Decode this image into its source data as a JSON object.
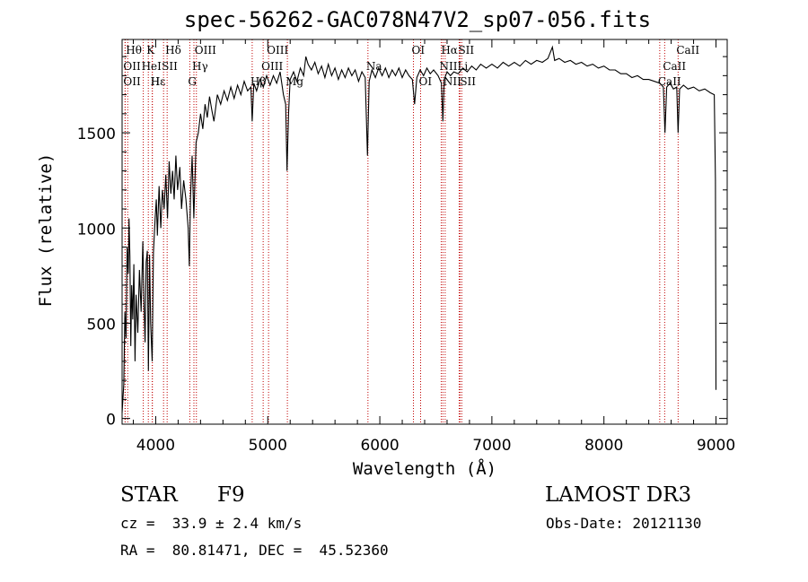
{
  "chart_data": {
    "type": "line",
    "title": "spec-56262-GAC078N47V2_sp07-056.fits",
    "xlabel": "Wavelength (Å)",
    "ylabel": "Flux (relative)",
    "xlim": [
      3700,
      9100
    ],
    "ylim": [
      -30,
      1990
    ],
    "xticks": [
      4000,
      5000,
      6000,
      7000,
      8000,
      9000
    ],
    "yticks": [
      0,
      500,
      1000,
      1500
    ],
    "series": [
      {
        "name": "flux",
        "points": [
          [
            3700,
            30
          ],
          [
            3715,
            180
          ],
          [
            3725,
            560
          ],
          [
            3735,
            420
          ],
          [
            3745,
            900
          ],
          [
            3755,
            760
          ],
          [
            3762,
            1050
          ],
          [
            3770,
            850
          ],
          [
            3778,
            380
          ],
          [
            3786,
            700
          ],
          [
            3795,
            520
          ],
          [
            3805,
            810
          ],
          [
            3815,
            300
          ],
          [
            3825,
            650
          ],
          [
            3840,
            450
          ],
          [
            3855,
            780
          ],
          [
            3870,
            560
          ],
          [
            3885,
            930
          ],
          [
            3895,
            620
          ],
          [
            3905,
            400
          ],
          [
            3915,
            820
          ],
          [
            3925,
            880
          ],
          [
            3935,
            250
          ],
          [
            3945,
            860
          ],
          [
            3955,
            500
          ],
          [
            3968,
            300
          ],
          [
            3980,
            870
          ],
          [
            3995,
            1050
          ],
          [
            4005,
            1150
          ],
          [
            4015,
            960
          ],
          [
            4030,
            1220
          ],
          [
            4045,
            1000
          ],
          [
            4060,
            1200
          ],
          [
            4075,
            1100
          ],
          [
            4090,
            1280
          ],
          [
            4105,
            1050
          ],
          [
            4120,
            1350
          ],
          [
            4135,
            1180
          ],
          [
            4150,
            1300
          ],
          [
            4165,
            1150
          ],
          [
            4180,
            1380
          ],
          [
            4195,
            1200
          ],
          [
            4215,
            1320
          ],
          [
            4230,
            1100
          ],
          [
            4250,
            1250
          ],
          [
            4270,
            1150
          ],
          [
            4290,
            1000
          ],
          [
            4300,
            800
          ],
          [
            4310,
            1150
          ],
          [
            4325,
            1380
          ],
          [
            4340,
            1050
          ],
          [
            4360,
            1450
          ],
          [
            4380,
            1500
          ],
          [
            4400,
            1600
          ],
          [
            4420,
            1520
          ],
          [
            4440,
            1650
          ],
          [
            4460,
            1580
          ],
          [
            4480,
            1690
          ],
          [
            4500,
            1620
          ],
          [
            4520,
            1560
          ],
          [
            4550,
            1700
          ],
          [
            4580,
            1650
          ],
          [
            4610,
            1720
          ],
          [
            4640,
            1670
          ],
          [
            4670,
            1740
          ],
          [
            4700,
            1680
          ],
          [
            4730,
            1750
          ],
          [
            4760,
            1700
          ],
          [
            4790,
            1770
          ],
          [
            4820,
            1720
          ],
          [
            4850,
            1740
          ],
          [
            4861,
            1560
          ],
          [
            4875,
            1760
          ],
          [
            4900,
            1720
          ],
          [
            4930,
            1780
          ],
          [
            4960,
            1740
          ],
          [
            4990,
            1800
          ],
          [
            5020,
            1750
          ],
          [
            5050,
            1800
          ],
          [
            5080,
            1760
          ],
          [
            5110,
            1820
          ],
          [
            5140,
            1700
          ],
          [
            5160,
            1650
          ],
          [
            5172,
            1300
          ],
          [
            5185,
            1600
          ],
          [
            5200,
            1780
          ],
          [
            5230,
            1820
          ],
          [
            5260,
            1770
          ],
          [
            5290,
            1840
          ],
          [
            5320,
            1800
          ],
          [
            5340,
            1900
          ],
          [
            5360,
            1860
          ],
          [
            5390,
            1830
          ],
          [
            5420,
            1870
          ],
          [
            5450,
            1810
          ],
          [
            5480,
            1850
          ],
          [
            5510,
            1790
          ],
          [
            5540,
            1860
          ],
          [
            5570,
            1800
          ],
          [
            5600,
            1840
          ],
          [
            5630,
            1780
          ],
          [
            5660,
            1830
          ],
          [
            5690,
            1790
          ],
          [
            5720,
            1840
          ],
          [
            5750,
            1800
          ],
          [
            5780,
            1830
          ],
          [
            5810,
            1770
          ],
          [
            5840,
            1820
          ],
          [
            5870,
            1790
          ],
          [
            5890,
            1380
          ],
          [
            5905,
            1770
          ],
          [
            5930,
            1830
          ],
          [
            5960,
            1790
          ],
          [
            5990,
            1840
          ],
          [
            6020,
            1800
          ],
          [
            6050,
            1840
          ],
          [
            6080,
            1790
          ],
          [
            6110,
            1830
          ],
          [
            6140,
            1800
          ],
          [
            6170,
            1840
          ],
          [
            6200,
            1790
          ],
          [
            6230,
            1830
          ],
          [
            6260,
            1800
          ],
          [
            6290,
            1780
          ],
          [
            6310,
            1650
          ],
          [
            6330,
            1790
          ],
          [
            6360,
            1830
          ],
          [
            6390,
            1800
          ],
          [
            6420,
            1840
          ],
          [
            6450,
            1810
          ],
          [
            6480,
            1830
          ],
          [
            6520,
            1800
          ],
          [
            6550,
            1760
          ],
          [
            6563,
            1560
          ],
          [
            6575,
            1780
          ],
          [
            6600,
            1820
          ],
          [
            6630,
            1800
          ],
          [
            6660,
            1820
          ],
          [
            6700,
            1810
          ],
          [
            6740,
            1840
          ],
          [
            6780,
            1820
          ],
          [
            6820,
            1850
          ],
          [
            6860,
            1830
          ],
          [
            6900,
            1860
          ],
          [
            6950,
            1840
          ],
          [
            7000,
            1860
          ],
          [
            7050,
            1840
          ],
          [
            7100,
            1870
          ],
          [
            7150,
            1850
          ],
          [
            7200,
            1870
          ],
          [
            7250,
            1850
          ],
          [
            7300,
            1880
          ],
          [
            7350,
            1860
          ],
          [
            7400,
            1880
          ],
          [
            7450,
            1870
          ],
          [
            7500,
            1890
          ],
          [
            7540,
            1950
          ],
          [
            7560,
            1880
          ],
          [
            7600,
            1890
          ],
          [
            7650,
            1870
          ],
          [
            7700,
            1880
          ],
          [
            7750,
            1860
          ],
          [
            7800,
            1870
          ],
          [
            7850,
            1850
          ],
          [
            7900,
            1860
          ],
          [
            7950,
            1840
          ],
          [
            8000,
            1850
          ],
          [
            8050,
            1830
          ],
          [
            8100,
            1830
          ],
          [
            8150,
            1810
          ],
          [
            8200,
            1810
          ],
          [
            8250,
            1790
          ],
          [
            8300,
            1800
          ],
          [
            8350,
            1780
          ],
          [
            8400,
            1780
          ],
          [
            8450,
            1770
          ],
          [
            8500,
            1760
          ],
          [
            8530,
            1740
          ],
          [
            8545,
            1500
          ],
          [
            8560,
            1740
          ],
          [
            8590,
            1760
          ],
          [
            8620,
            1730
          ],
          [
            8650,
            1740
          ],
          [
            8662,
            1500
          ],
          [
            8675,
            1730
          ],
          [
            8710,
            1750
          ],
          [
            8750,
            1730
          ],
          [
            8800,
            1740
          ],
          [
            8850,
            1720
          ],
          [
            8900,
            1730
          ],
          [
            8950,
            1710
          ],
          [
            8985,
            1700
          ],
          [
            8995,
            1250
          ],
          [
            9000,
            150
          ]
        ]
      }
    ],
    "lines": [
      {
        "label": "Hθ",
        "x": 3750,
        "row": 0
      },
      {
        "label": "OII",
        "x": 3727,
        "row": 1
      },
      {
        "label": "OII",
        "x": 3727,
        "row": 2
      },
      {
        "label": "K",
        "x": 3934,
        "row": 0
      },
      {
        "label": "HeI",
        "x": 3889,
        "row": 1
      },
      {
        "label": "SII",
        "x": 4070,
        "row": 1
      },
      {
        "label": "Hε",
        "x": 3970,
        "row": 2
      },
      {
        "label": "H",
        "x": 3969,
        "row": 2
      },
      {
        "label": "Hδ",
        "x": 4102,
        "row": 0
      },
      {
        "label": "OIII",
        "x": 4363,
        "row": 0
      },
      {
        "label": "Hγ",
        "x": 4341,
        "row": 1
      },
      {
        "label": "G",
        "x": 4304,
        "row": 2
      },
      {
        "label": "OIII",
        "x": 5007,
        "row": 0
      },
      {
        "label": "OIII",
        "x": 4959,
        "row": 1
      },
      {
        "label": "Hβ",
        "x": 4861,
        "row": 2
      },
      {
        "label": "Mg",
        "x": 5175,
        "row": 2
      },
      {
        "label": "Na",
        "x": 5894,
        "row": 1
      },
      {
        "label": "OI",
        "x": 6300,
        "row": 0
      },
      {
        "label": "OI",
        "x": 6364,
        "row": 2
      },
      {
        "label": "Hα",
        "x": 6563,
        "row": 0
      },
      {
        "label": "SII",
        "x": 6716,
        "row": 0
      },
      {
        "label": "NII",
        "x": 6548,
        "row": 1
      },
      {
        "label": "NII",
        "x": 6583,
        "row": 2
      },
      {
        "label": "Li",
        "x": 6708,
        "row": 1
      },
      {
        "label": "SII",
        "x": 6731,
        "row": 2
      },
      {
        "label": "CaII",
        "x": 8662,
        "row": 0
      },
      {
        "label": "CaII",
        "x": 8542,
        "row": 1
      },
      {
        "label": "CaII",
        "x": 8498,
        "row": 2
      }
    ]
  },
  "info": {
    "object_class": "STAR",
    "subclass": "F9",
    "survey": "LAMOST DR3",
    "redshift": "cz =  33.9 ± 2.4 km/s",
    "obs_date": "Obs-Date: 20121130",
    "coordinates": "RA =  80.81471, DEC =  45.52360"
  }
}
